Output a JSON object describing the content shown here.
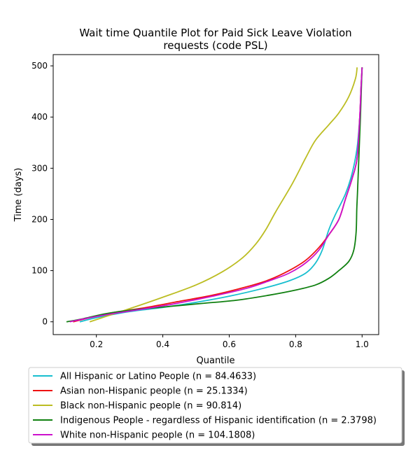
{
  "chart_data": {
    "type": "line",
    "title_line1": "Wait time Quantile Plot for Paid Sick Leave Violation",
    "title_line2": "requests (code PSL)",
    "xlabel": "Quantile",
    "ylabel": "Time (days)",
    "xlim": [
      0.07,
      1.05
    ],
    "ylim": [
      -25,
      522
    ],
    "xticks": [
      {
        "value": 0.2,
        "label": "0.2"
      },
      {
        "value": 0.4,
        "label": "0.4"
      },
      {
        "value": 0.6,
        "label": "0.6"
      },
      {
        "value": 0.8,
        "label": "0.8"
      },
      {
        "value": 1.0,
        "label": "1.0"
      }
    ],
    "yticks": [
      {
        "value": 0,
        "label": "0"
      },
      {
        "value": 100,
        "label": "100"
      },
      {
        "value": 200,
        "label": "200"
      },
      {
        "value": 300,
        "label": "300"
      },
      {
        "value": 400,
        "label": "400"
      },
      {
        "value": 500,
        "label": "500"
      }
    ],
    "grid": false,
    "legend_position": "below",
    "series": [
      {
        "name": "All Hispanic or Latino People (n = 84.4633)",
        "color": "#17becf",
        "points": [
          [
            0.15,
            0
          ],
          [
            0.2,
            8
          ],
          [
            0.3,
            20
          ],
          [
            0.4,
            28
          ],
          [
            0.5,
            38
          ],
          [
            0.6,
            50
          ],
          [
            0.7,
            65
          ],
          [
            0.78,
            80
          ],
          [
            0.83,
            95
          ],
          [
            0.86,
            115
          ],
          [
            0.88,
            140
          ],
          [
            0.9,
            180
          ],
          [
            0.92,
            210
          ],
          [
            0.95,
            250
          ],
          [
            0.97,
            290
          ],
          [
            0.985,
            340
          ],
          [
            0.993,
            400
          ],
          [
            0.997,
            460
          ],
          [
            1.0,
            497
          ]
        ]
      },
      {
        "name": "Asian non-Hispanic people (n = 25.1334)",
        "color": "#ee1111",
        "points": [
          [
            0.13,
            0
          ],
          [
            0.18,
            8
          ],
          [
            0.25,
            18
          ],
          [
            0.35,
            28
          ],
          [
            0.45,
            40
          ],
          [
            0.55,
            52
          ],
          [
            0.65,
            68
          ],
          [
            0.72,
            82
          ],
          [
            0.78,
            100
          ],
          [
            0.83,
            120
          ],
          [
            0.87,
            145
          ],
          [
            0.9,
            170
          ],
          [
            0.93,
            200
          ],
          [
            0.95,
            240
          ],
          [
            0.97,
            280
          ],
          [
            0.985,
            320
          ],
          [
            0.993,
            400
          ],
          [
            0.997,
            460
          ],
          [
            1.0,
            497
          ]
        ]
      },
      {
        "name": "Black non-Hispanic people (n = 90.814)",
        "color": "#bcbd22",
        "points": [
          [
            0.18,
            0
          ],
          [
            0.25,
            15
          ],
          [
            0.32,
            30
          ],
          [
            0.4,
            48
          ],
          [
            0.5,
            72
          ],
          [
            0.58,
            98
          ],
          [
            0.64,
            125
          ],
          [
            0.68,
            152
          ],
          [
            0.71,
            180
          ],
          [
            0.74,
            215
          ],
          [
            0.79,
            270
          ],
          [
            0.83,
            320
          ],
          [
            0.86,
            355
          ],
          [
            0.9,
            385
          ],
          [
            0.93,
            408
          ],
          [
            0.96,
            440
          ],
          [
            0.98,
            475
          ],
          [
            0.985,
            497
          ]
        ]
      },
      {
        "name": "Indigenous People - regardless of Hispanic identification (n = 2.3798)",
        "color": "#108010",
        "points": [
          [
            0.11,
            0
          ],
          [
            0.16,
            6
          ],
          [
            0.23,
            16
          ],
          [
            0.32,
            24
          ],
          [
            0.42,
            30
          ],
          [
            0.52,
            36
          ],
          [
            0.62,
            42
          ],
          [
            0.72,
            52
          ],
          [
            0.8,
            62
          ],
          [
            0.86,
            72
          ],
          [
            0.9,
            85
          ],
          [
            0.93,
            100
          ],
          [
            0.96,
            118
          ],
          [
            0.975,
            140
          ],
          [
            0.982,
            175
          ],
          [
            0.984,
            220
          ],
          [
            0.986,
            250
          ],
          [
            0.989,
            300
          ],
          [
            0.992,
            350
          ],
          [
            0.995,
            400
          ],
          [
            0.998,
            460
          ],
          [
            1.0,
            497
          ]
        ]
      },
      {
        "name": "White non-Hispanic people (n = 104.1808)",
        "color": "#cc11cc",
        "points": [
          [
            0.12,
            0
          ],
          [
            0.18,
            8
          ],
          [
            0.25,
            16
          ],
          [
            0.35,
            26
          ],
          [
            0.45,
            37
          ],
          [
            0.55,
            50
          ],
          [
            0.65,
            65
          ],
          [
            0.72,
            80
          ],
          [
            0.78,
            95
          ],
          [
            0.83,
            115
          ],
          [
            0.87,
            140
          ],
          [
            0.9,
            170
          ],
          [
            0.93,
            200
          ],
          [
            0.95,
            240
          ],
          [
            0.97,
            280
          ],
          [
            0.985,
            320
          ],
          [
            0.993,
            400
          ],
          [
            0.997,
            460
          ],
          [
            1.0,
            497
          ]
        ]
      }
    ]
  }
}
